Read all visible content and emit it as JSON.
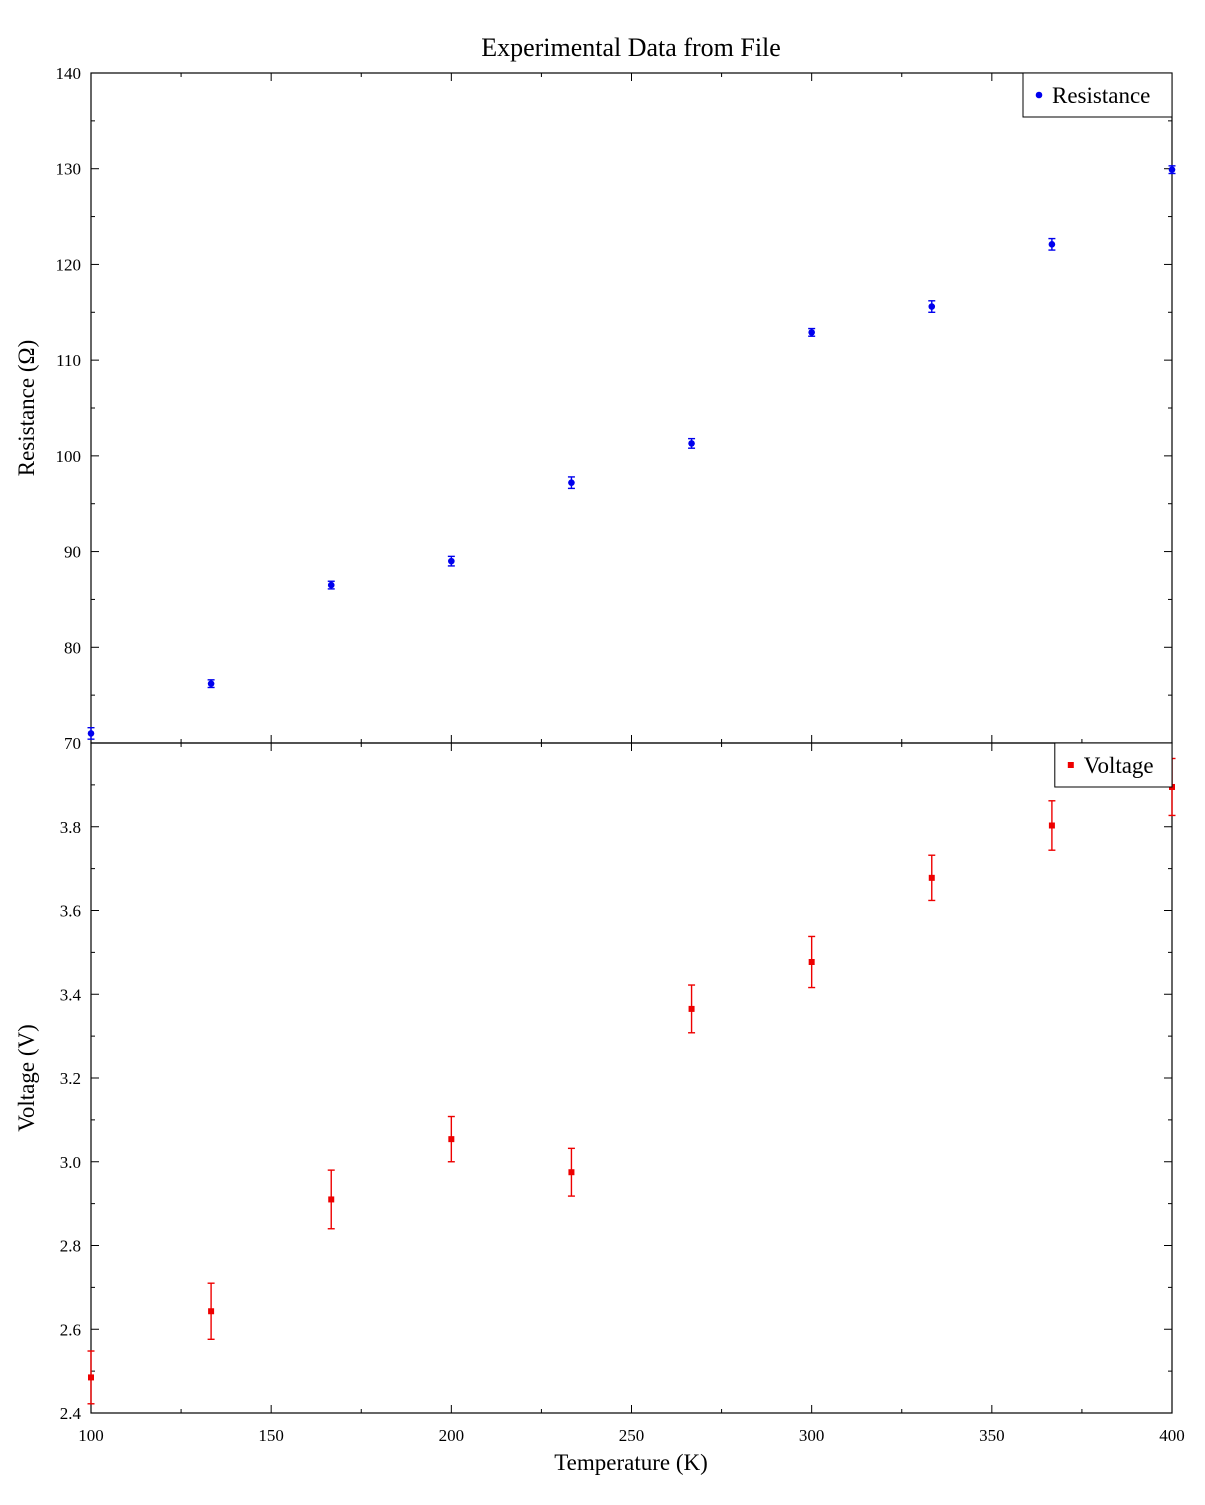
{
  "chart_data": {
    "type": "scatter",
    "title": "Experimental Data from File",
    "xlabel": "Temperature (K)",
    "xlim": [
      100,
      400
    ],
    "x_ticks": [
      100,
      150,
      200,
      250,
      300,
      350,
      400
    ],
    "x_tick_labels": [
      "100",
      "150",
      "200",
      "250",
      "300",
      "350",
      "400"
    ],
    "grid": false,
    "panels": [
      {
        "ylabel": "Resistance (Ω)",
        "ylim": [
          70,
          140
        ],
        "y_ticks": [
          70,
          80,
          90,
          100,
          110,
          120,
          130,
          140
        ],
        "y_tick_labels": [
          "70",
          "80",
          "90",
          "100",
          "110",
          "120",
          "130",
          "140"
        ],
        "legend_position": "top-right",
        "series": [
          {
            "name": "Resistance",
            "marker": "circle",
            "color": "#0000ee",
            "x": [
              100,
              133.33,
              166.67,
              200,
              233.33,
              266.67,
              300,
              333.33,
              366.67,
              400
            ],
            "y": [
              71.0,
              76.2,
              86.5,
              89.0,
              97.2,
              101.3,
              112.9,
              115.6,
              122.1,
              129.9
            ],
            "error": [
              0.6,
              0.4,
              0.4,
              0.5,
              0.6,
              0.5,
              0.4,
              0.6,
              0.6,
              0.4
            ]
          }
        ]
      },
      {
        "ylabel": "Voltage (V)",
        "ylim": [
          2.4,
          4.0
        ],
        "y_ticks": [
          2.4,
          2.6,
          2.8,
          3.0,
          3.2,
          3.4,
          3.6,
          3.8
        ],
        "y_tick_labels": [
          "2.4",
          "2.6",
          "2.8",
          "3.0",
          "3.2",
          "3.4",
          "3.6",
          "3.8"
        ],
        "legend_position": "top-right",
        "series": [
          {
            "name": "Voltage",
            "marker": "square",
            "color": "#ee0000",
            "x": [
              100,
              133.33,
              166.67,
              200,
              233.33,
              266.67,
              300,
              333.33,
              366.67,
              400
            ],
            "y": [
              2.485,
              2.643,
              2.91,
              3.054,
              2.975,
              3.365,
              3.477,
              3.678,
              3.803,
              3.895
            ],
            "error": [
              0.063,
              0.067,
              0.07,
              0.054,
              0.057,
              0.057,
              0.061,
              0.054,
              0.059,
              0.068
            ]
          }
        ]
      }
    ]
  }
}
